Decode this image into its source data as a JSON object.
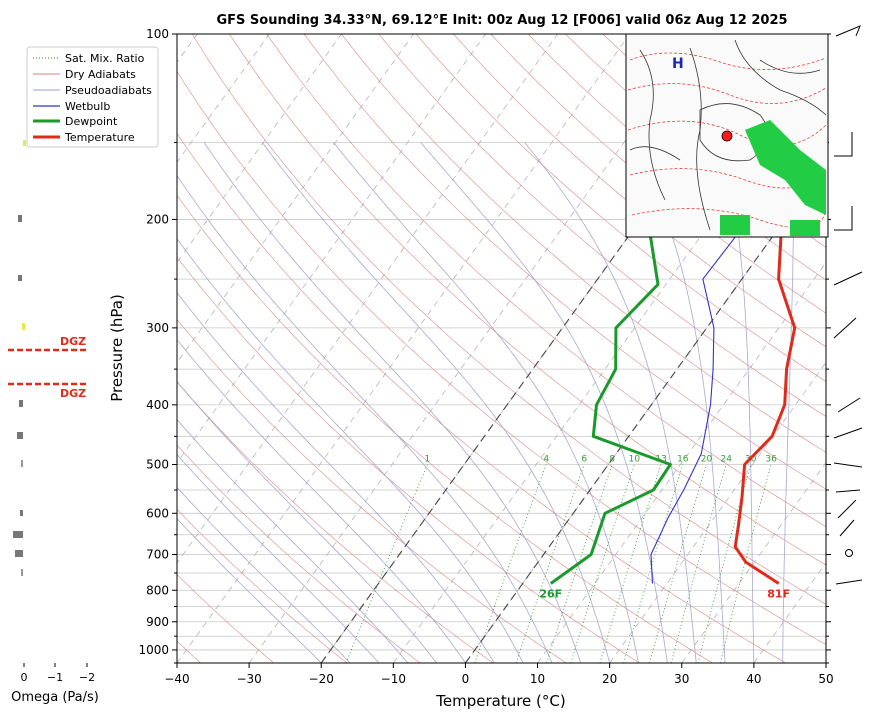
{
  "chart_data": {
    "type": "line",
    "title": "GFS Sounding 34.33°N, 69.12°E Init: 00z Aug 12 [F006] valid 06z Aug 12 2025",
    "xlabel": "Temperature (°C)",
    "ylabel": "Pressure (hPa)",
    "xlim": [
      -40,
      50
    ],
    "ylim": [
      1050,
      100
    ],
    "y_scale": "log",
    "skew": "skew-T log-p",
    "grid": true,
    "legend_position": "top-left",
    "x_ticks": [
      "−40",
      "−30",
      "−20",
      "−10",
      "0",
      "10",
      "20",
      "30",
      "40",
      "50"
    ],
    "y_ticks": [
      "100",
      "200",
      "300",
      "400",
      "500",
      "600",
      "700",
      "800",
      "900",
      "1000"
    ],
    "legend": [
      {
        "name": "Sat. Mix. Ratio",
        "color": "#2e8b2e",
        "style": "dotted"
      },
      {
        "name": "Dry Adiabats",
        "color": "#d98080",
        "style": "solid"
      },
      {
        "name": "Pseudoadiabats",
        "color": "#9e9ed0",
        "style": "solid"
      },
      {
        "name": "Wetbulb",
        "color": "#3333cc",
        "style": "solid"
      },
      {
        "name": "Dewpoint",
        "color": "#1a9a2a",
        "style": "thick"
      },
      {
        "name": "Temperature",
        "color": "#e02a1c",
        "style": "thick"
      }
    ],
    "series": [
      {
        "name": "Temperature",
        "color": "#e02a1c",
        "points": [
          [
            35.5,
            780
          ],
          [
            28.8,
            720
          ],
          [
            25.8,
            680
          ],
          [
            24.2,
            630
          ],
          [
            21.8,
            565
          ],
          [
            18.9,
            500
          ],
          [
            19.9,
            450
          ],
          [
            18.5,
            400
          ],
          [
            15.2,
            350
          ],
          [
            12.2,
            300
          ],
          [
            5.1,
            250
          ],
          [
            -0.4,
            200
          ],
          [
            -6.5,
            150
          ],
          [
            -15.1,
            100
          ]
        ]
      },
      {
        "name": "Dewpoint",
        "color": "#1a9a2a",
        "points": [
          [
            3.9,
            780
          ],
          [
            6.6,
            700
          ],
          [
            4.4,
            600
          ],
          [
            8.8,
            550
          ],
          [
            8.6,
            500
          ],
          [
            -4.9,
            450
          ],
          [
            -7.6,
            400
          ],
          [
            -8.5,
            350
          ],
          [
            -12.6,
            300
          ],
          [
            -11.1,
            255
          ],
          [
            -19.0,
            200
          ],
          [
            -20.2,
            150
          ],
          [
            -24.7,
            100
          ]
        ]
      },
      {
        "name": "Wetbulb",
        "color": "#3333cc",
        "points": [
          [
            18.0,
            780
          ],
          [
            14.9,
            700
          ],
          [
            13.6,
            610
          ],
          [
            13.0,
            550
          ],
          [
            11.8,
            480
          ],
          [
            8.2,
            400
          ],
          [
            5.0,
            350
          ],
          [
            1.0,
            300
          ],
          [
            -5.4,
            250
          ],
          [
            -5.0,
            200
          ]
        ]
      }
    ],
    "mixing_ratio_labels": [
      "1",
      "4",
      "6",
      "8",
      "10",
      "13",
      "16",
      "20",
      "24",
      "30",
      "36"
    ],
    "annotations": {
      "surface_temp": "81F",
      "surface_dewpoint": "26F",
      "dgz": "DGZ"
    },
    "omega": {
      "xlabel": "Omega (Pa/s)",
      "ticks": [
        "0",
        "−1",
        "−2"
      ]
    }
  }
}
